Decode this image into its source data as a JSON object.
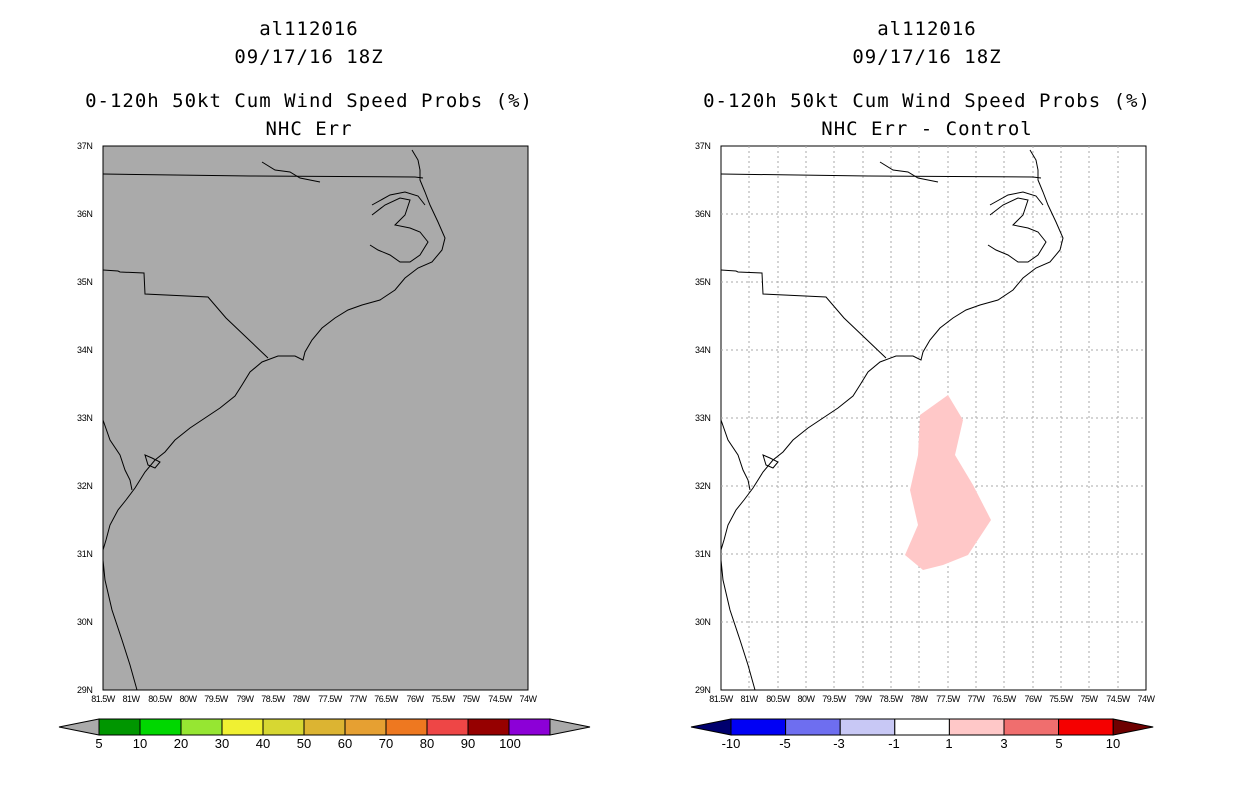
{
  "left_panel": {
    "storm_id": "al112016",
    "datetime": "09/17/16 18Z",
    "product": "0-120h 50kt Cum Wind Speed Probs (%)",
    "subtitle": "NHC Err",
    "map_background": "#aaaaaa",
    "colorbar": {
      "left_arrow_color": "#aaaaaa",
      "right_arrow_color": "#aaaaaa",
      "colors": [
        "#009600",
        "#00d700",
        "#96e632",
        "#f0f032",
        "#d7d732",
        "#dcb432",
        "#e6a032",
        "#ee7820",
        "#ee4646",
        "#960000",
        "#8c00d7"
      ],
      "labels": [
        "5",
        "10",
        "20",
        "30",
        "40",
        "50",
        "60",
        "70",
        "80",
        "90",
        "100"
      ]
    }
  },
  "right_panel": {
    "storm_id": "al112016",
    "datetime": "09/17/16 18Z",
    "product": "0-120h 50kt Cum Wind Speed Probs (%)",
    "subtitle": "NHC Err - Control",
    "map_background": "#ffffff",
    "shaded_region": {
      "color": "#ffc8c8",
      "range": "1 to 3"
    },
    "colorbar": {
      "left_arrow_color": "#00006e",
      "right_arrow_color": "#6e0000",
      "colors": [
        "#0000f5",
        "#6e6ef0",
        "#c8c8f5",
        "#ffffff",
        "#ffc8c8",
        "#f06e6e",
        "#f50000"
      ],
      "labels": [
        "-10",
        "-5",
        "-3",
        "-1",
        "1",
        "3",
        "5",
        "10"
      ]
    }
  },
  "map": {
    "lat_labels": [
      "37N",
      "36N",
      "35N",
      "34N",
      "33N",
      "32N",
      "31N",
      "30N",
      "29N"
    ],
    "lon_labels": [
      "81.5W",
      "81W",
      "80.5W",
      "80W",
      "79.5W",
      "79W",
      "78.5W",
      "78W",
      "77.5W",
      "77W",
      "76.5W",
      "76W",
      "75.5W",
      "75W",
      "74.5W",
      "74W"
    ]
  }
}
